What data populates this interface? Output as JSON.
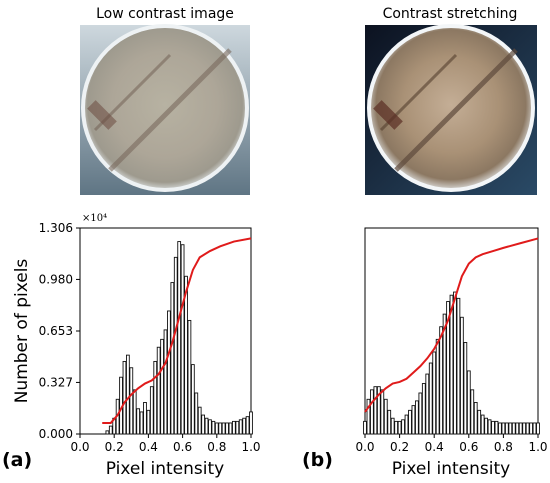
{
  "figure": {
    "panel_a_title": "Low contrast image",
    "panel_b_title": "Contrast stretching",
    "panel_a_tag": "(a)",
    "panel_b_tag": "(b)",
    "scale_note": "×10⁴"
  },
  "colors": {
    "cdf_line": "#e01b1b",
    "bars": "#111111",
    "background_dark": "#1c2530",
    "disk_light": "#c8c2b0",
    "disk_rim": "#e8eef2"
  },
  "chart_data": [
    {
      "type": "bar",
      "panel": "a",
      "title": "",
      "xlabel": "Pixel intensity",
      "ylabel": "Number of pixels",
      "xlim": [
        0.0,
        1.0
      ],
      "ylim": [
        0.0,
        1.306
      ],
      "xticks": [
        "0.0",
        "0.2",
        "0.4",
        "0.6",
        "0.8",
        "1.0"
      ],
      "yticks": [
        "0.000",
        "0.327",
        "0.653",
        "0.980",
        "1.306"
      ],
      "scale": "×10⁴",
      "histogram": {
        "x": [
          0.16,
          0.18,
          0.2,
          0.22,
          0.24,
          0.26,
          0.28,
          0.3,
          0.32,
          0.34,
          0.36,
          0.38,
          0.4,
          0.42,
          0.44,
          0.46,
          0.48,
          0.5,
          0.52,
          0.54,
          0.56,
          0.58,
          0.6,
          0.62,
          0.64,
          0.66,
          0.68,
          0.7,
          0.72,
          0.74,
          0.76,
          0.78,
          0.8,
          0.82,
          0.84,
          0.86,
          0.88,
          0.9,
          0.92,
          0.94,
          0.96,
          0.98,
          1.0
        ],
        "y": [
          0.02,
          0.05,
          0.1,
          0.22,
          0.36,
          0.46,
          0.5,
          0.42,
          0.28,
          0.16,
          0.14,
          0.2,
          0.15,
          0.3,
          0.46,
          0.55,
          0.6,
          0.66,
          0.78,
          0.96,
          1.12,
          1.22,
          1.2,
          1.0,
          0.72,
          0.44,
          0.26,
          0.17,
          0.12,
          0.1,
          0.09,
          0.08,
          0.07,
          0.07,
          0.07,
          0.07,
          0.07,
          0.08,
          0.08,
          0.09,
          0.1,
          0.11,
          0.14
        ]
      },
      "cdf": {
        "x": [
          0.13,
          0.18,
          0.22,
          0.26,
          0.3,
          0.34,
          0.38,
          0.42,
          0.46,
          0.5,
          0.54,
          0.58,
          0.62,
          0.66,
          0.7,
          0.76,
          0.82,
          0.9,
          1.0
        ],
        "y": [
          0.07,
          0.07,
          0.12,
          0.2,
          0.25,
          0.29,
          0.32,
          0.34,
          0.38,
          0.45,
          0.58,
          0.74,
          0.9,
          1.04,
          1.12,
          1.16,
          1.19,
          1.22,
          1.24
        ]
      }
    },
    {
      "type": "bar",
      "panel": "b",
      "title": "",
      "xlabel": "Pixel intensity",
      "ylabel": "",
      "xlim": [
        0.0,
        1.0
      ],
      "ylim": [
        0.0,
        1.306
      ],
      "xticks": [
        "0.0",
        "0.2",
        "0.4",
        "0.6",
        "0.8",
        "1.0"
      ],
      "yticks": [],
      "histogram": {
        "x": [
          0.0,
          0.02,
          0.04,
          0.06,
          0.08,
          0.1,
          0.12,
          0.14,
          0.16,
          0.18,
          0.2,
          0.22,
          0.24,
          0.26,
          0.28,
          0.3,
          0.32,
          0.34,
          0.36,
          0.38,
          0.4,
          0.42,
          0.44,
          0.46,
          0.48,
          0.5,
          0.52,
          0.54,
          0.56,
          0.58,
          0.6,
          0.62,
          0.64,
          0.66,
          0.68,
          0.7,
          0.72,
          0.74,
          0.76,
          0.78,
          0.8,
          0.82,
          0.84,
          0.86,
          0.88,
          0.9,
          0.92,
          0.94,
          0.96,
          0.98,
          1.0
        ],
        "y": [
          0.08,
          0.22,
          0.28,
          0.3,
          0.3,
          0.28,
          0.22,
          0.15,
          0.1,
          0.08,
          0.08,
          0.09,
          0.12,
          0.15,
          0.18,
          0.21,
          0.26,
          0.32,
          0.38,
          0.45,
          0.52,
          0.6,
          0.68,
          0.76,
          0.84,
          0.88,
          0.9,
          0.86,
          0.74,
          0.58,
          0.4,
          0.28,
          0.2,
          0.15,
          0.12,
          0.1,
          0.09,
          0.08,
          0.08,
          0.07,
          0.07,
          0.07,
          0.07,
          0.07,
          0.07,
          0.07,
          0.07,
          0.07,
          0.07,
          0.07,
          0.07
        ]
      },
      "cdf": {
        "x": [
          0.0,
          0.04,
          0.08,
          0.12,
          0.16,
          0.2,
          0.24,
          0.28,
          0.32,
          0.36,
          0.4,
          0.44,
          0.48,
          0.52,
          0.56,
          0.6,
          0.64,
          0.68,
          0.74,
          0.8,
          0.9,
          1.0
        ],
        "y": [
          0.14,
          0.2,
          0.25,
          0.29,
          0.32,
          0.33,
          0.35,
          0.39,
          0.43,
          0.48,
          0.54,
          0.62,
          0.72,
          0.86,
          1.0,
          1.08,
          1.12,
          1.14,
          1.16,
          1.18,
          1.21,
          1.24
        ]
      }
    }
  ]
}
